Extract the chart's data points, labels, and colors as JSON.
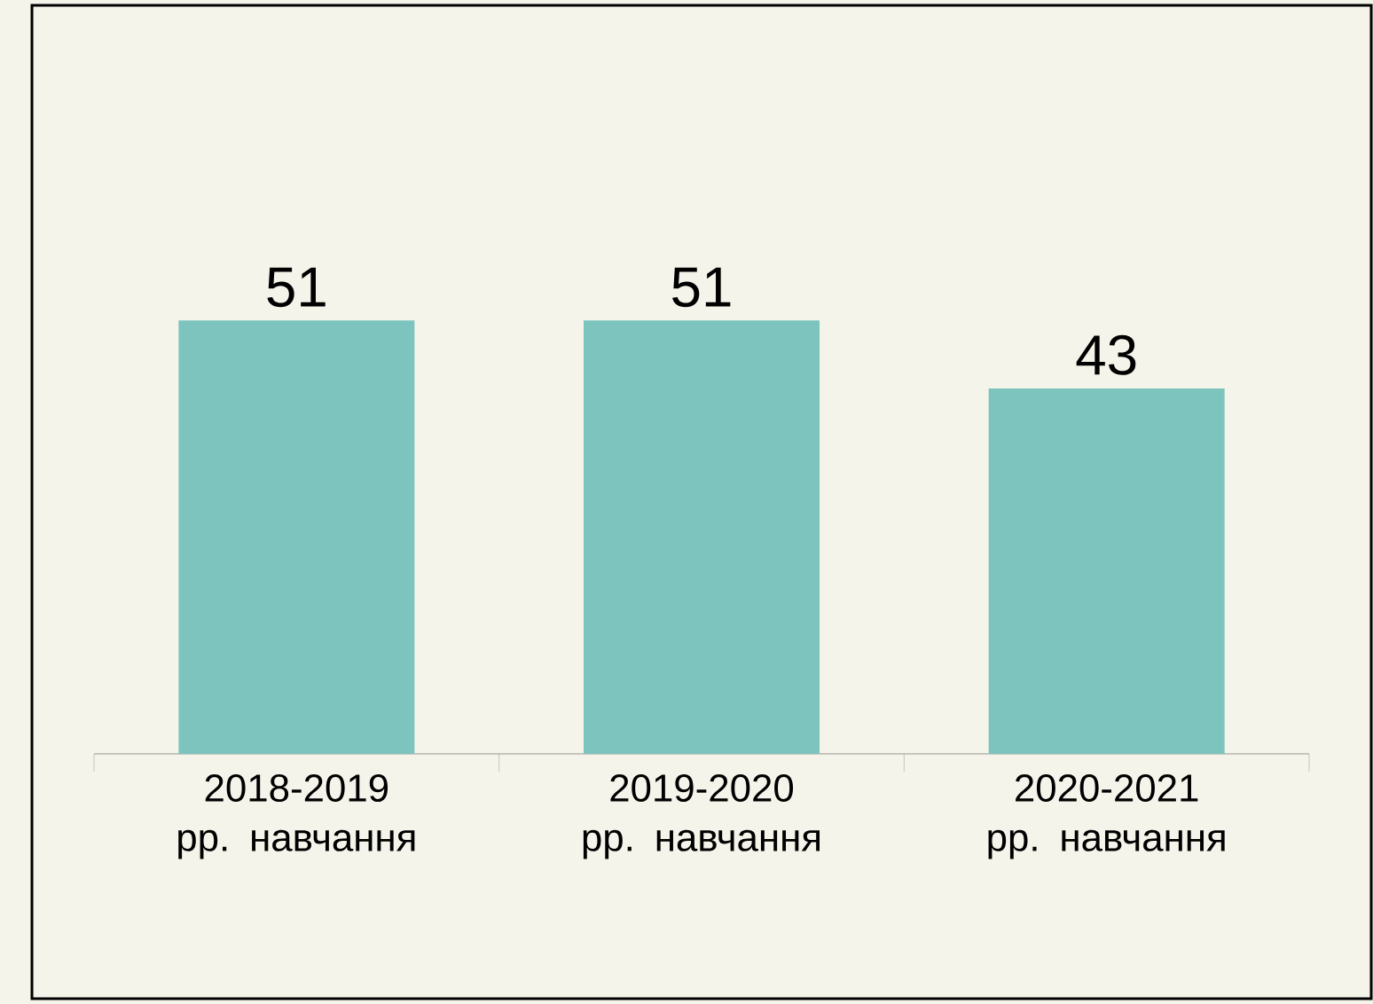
{
  "chart_data": {
    "type": "bar",
    "categories": [
      "2018-2019 рр. навчання",
      "2019-2020 рр. навчання",
      "2020-2021 рр. навчання"
    ],
    "values": [
      51,
      51,
      43
    ],
    "color": "#7dc4bf",
    "data_labels": true
  }
}
